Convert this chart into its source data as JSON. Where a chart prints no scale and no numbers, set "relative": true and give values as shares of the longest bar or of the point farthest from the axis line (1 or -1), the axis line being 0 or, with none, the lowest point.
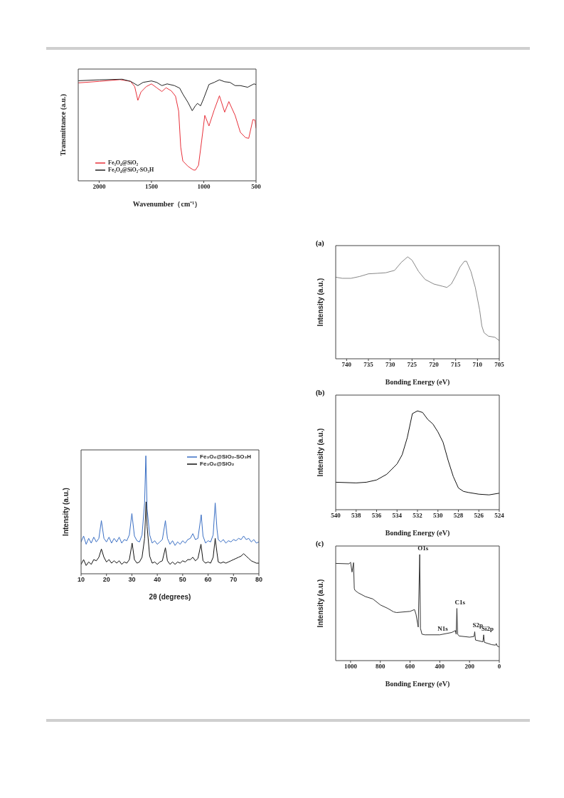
{
  "chart_data": [
    {
      "type": "line",
      "relative": true,
      "xlabel": "Wavenumber（cm⁻¹）",
      "ylabel": "Transmittance (a.u.)",
      "xlim": [
        2200,
        500
      ],
      "xticks": [
        2000,
        1500,
        1000,
        500
      ],
      "legend": "bottom left",
      "series": [
        {
          "name": "Fe₃O₄@SiO₂",
          "color": "#e8303a",
          "x": [
            2200,
            2000,
            1800,
            1700,
            1660,
            1630,
            1600,
            1550,
            1500,
            1450,
            1400,
            1360,
            1310,
            1270,
            1240,
            1220,
            1200,
            1150,
            1100,
            1080,
            1050,
            1020,
            990,
            950,
            900,
            850,
            800,
            760,
            700,
            650,
            600,
            570,
            530,
            510,
            500
          ],
          "values": [
            0.964,
            0.979,
            0.996,
            0.979,
            0.927,
            0.792,
            0.874,
            0.927,
            0.954,
            0.916,
            0.879,
            0.916,
            0.885,
            0.833,
            0.686,
            0.331,
            0.195,
            0.142,
            0.107,
            0.105,
            0.153,
            0.393,
            0.644,
            0.54,
            0.697,
            0.837,
            0.676,
            0.78,
            0.644,
            0.477,
            0.425,
            0.418,
            0.603,
            0.598,
            0.519
          ]
        },
        {
          "name": "Fe₃O₄@SiO₂-SO₃H",
          "color": "#222222",
          "x": [
            2200,
            2000,
            1780,
            1700,
            1630,
            1580,
            1500,
            1450,
            1400,
            1350,
            1280,
            1230,
            1200,
            1150,
            1110,
            1080,
            1060,
            1030,
            1000,
            950,
            900,
            850,
            800,
            750,
            700,
            650,
            580,
            520,
            500
          ],
          "values": [
            0.985,
            0.994,
            1.0,
            0.979,
            0.937,
            0.969,
            0.983,
            0.969,
            0.937,
            0.954,
            0.937,
            0.912,
            0.854,
            0.77,
            0.69,
            0.738,
            0.762,
            0.738,
            0.812,
            0.948,
            0.969,
            0.994,
            0.975,
            0.969,
            0.937,
            0.937,
            0.921,
            0.954,
            0.948
          ]
        }
      ]
    },
    {
      "type": "line",
      "relative": true,
      "xlabel": "2θ (degrees)",
      "ylabel": "Intensity (a.u.)",
      "xlim": [
        10,
        80
      ],
      "xticks": [
        10,
        20,
        30,
        40,
        50,
        60,
        70,
        80
      ],
      "legend": "top right",
      "series": [
        {
          "name": "Fe₃O₄@SiO₂-SO₃H",
          "color": "#3a6fc4",
          "x": [
            10,
            11,
            12,
            13,
            14,
            15,
            16,
            17,
            18,
            19,
            20,
            21,
            22,
            23,
            24,
            25,
            26,
            27,
            28,
            29,
            30,
            31,
            32,
            33,
            34,
            35,
            35.5,
            36,
            37,
            38,
            39,
            40,
            41,
            42,
            43.2,
            44,
            45,
            46,
            47,
            48,
            49,
            50,
            51,
            52,
            53,
            54,
            55,
            56,
            57.3,
            58,
            59,
            60,
            61,
            62,
            62.8,
            63.5,
            64,
            65,
            66,
            67,
            68,
            69,
            70,
            71,
            72,
            73,
            74,
            75,
            76,
            77,
            78,
            79,
            80
          ],
          "values": [
            0.27,
            0.32,
            0.25,
            0.3,
            0.26,
            0.31,
            0.27,
            0.3,
            0.45,
            0.3,
            0.27,
            0.31,
            0.26,
            0.3,
            0.27,
            0.31,
            0.26,
            0.29,
            0.28,
            0.33,
            0.51,
            0.32,
            0.28,
            0.27,
            0.33,
            0.6,
            1.0,
            0.55,
            0.33,
            0.26,
            0.28,
            0.25,
            0.27,
            0.29,
            0.45,
            0.3,
            0.25,
            0.28,
            0.24,
            0.27,
            0.25,
            0.28,
            0.26,
            0.29,
            0.3,
            0.34,
            0.29,
            0.3,
            0.5,
            0.32,
            0.26,
            0.28,
            0.27,
            0.33,
            0.6,
            0.38,
            0.29,
            0.27,
            0.29,
            0.26,
            0.28,
            0.27,
            0.29,
            0.28,
            0.3,
            0.29,
            0.32,
            0.29,
            0.3,
            0.27,
            0.29,
            0.26,
            0.27
          ]
        },
        {
          "name": "Fe₃O₄@SiO₂",
          "color": "#111111",
          "x": [
            10,
            11,
            12,
            13,
            14,
            15,
            16,
            17,
            18,
            19,
            20,
            21,
            22,
            23,
            24,
            25,
            26,
            27,
            28,
            29,
            30.1,
            31,
            32,
            33,
            34,
            35,
            35.6,
            36,
            37,
            38,
            39,
            40,
            41,
            42,
            43.2,
            44,
            45,
            46,
            47,
            48,
            49,
            50,
            51,
            52,
            53,
            54,
            55,
            56,
            57.2,
            58,
            59,
            60,
            61,
            62,
            62.8,
            63.5,
            64,
            65,
            66,
            67,
            68,
            69,
            70,
            71,
            72,
            73,
            74,
            75,
            76,
            77,
            78,
            79,
            80
          ],
          "values": [
            0.08,
            0.12,
            0.07,
            0.1,
            0.08,
            0.12,
            0.11,
            0.14,
            0.21,
            0.14,
            0.1,
            0.12,
            0.09,
            0.11,
            0.09,
            0.11,
            0.08,
            0.1,
            0.09,
            0.12,
            0.26,
            0.12,
            0.09,
            0.1,
            0.14,
            0.3,
            0.61,
            0.4,
            0.15,
            0.09,
            0.1,
            0.08,
            0.1,
            0.11,
            0.22,
            0.11,
            0.08,
            0.1,
            0.08,
            0.1,
            0.09,
            0.11,
            0.1,
            0.12,
            0.12,
            0.14,
            0.11,
            0.13,
            0.25,
            0.11,
            0.09,
            0.1,
            0.09,
            0.14,
            0.3,
            0.18,
            0.1,
            0.09,
            0.1,
            0.09,
            0.1,
            0.11,
            0.12,
            0.13,
            0.14,
            0.15,
            0.17,
            0.15,
            0.13,
            0.11,
            0.1,
            0.09,
            0.09
          ]
        }
      ]
    },
    {
      "type": "line",
      "relative": true,
      "title": "(a)",
      "xlabel": "Bonding Energy (eV)",
      "ylabel": "Intensity (a.u.)",
      "xlim": [
        742.5,
        705
      ],
      "xticks": [
        740,
        735,
        730,
        725,
        720,
        715,
        710,
        705
      ],
      "series": [
        {
          "color": "#888888",
          "x": [
            742.5,
            741,
            739,
            737,
            735,
            733,
            731,
            729,
            727.5,
            726,
            725,
            723.5,
            722,
            720,
            718,
            717,
            716,
            715,
            714,
            713,
            712.5,
            711.5,
            710.5,
            709.5,
            709,
            708.5,
            707.5,
            706,
            705
          ],
          "values": [
            0.8,
            0.789,
            0.789,
            0.807,
            0.833,
            0.838,
            0.844,
            0.867,
            0.944,
            1.0,
            0.967,
            0.856,
            0.778,
            0.733,
            0.711,
            0.7,
            0.733,
            0.811,
            0.9,
            0.956,
            0.956,
            0.856,
            0.7,
            0.478,
            0.322,
            0.256,
            0.222,
            0.211,
            0.178
          ]
        }
      ]
    },
    {
      "type": "line",
      "relative": true,
      "title": "(b)",
      "xlabel": "Bonding Energy (eV)",
      "ylabel": "Intensity (a.u.)",
      "xlim": [
        540,
        524
      ],
      "xticks": [
        540,
        538,
        536,
        534,
        532,
        530,
        528,
        526,
        524
      ],
      "series": [
        {
          "color": "#111111",
          "x": [
            540,
            538,
            537,
            536,
            535,
            534,
            533.5,
            533,
            532.5,
            532,
            531.5,
            531,
            530.5,
            530,
            529.5,
            529,
            528.5,
            528,
            527.5,
            527,
            526,
            525,
            524
          ],
          "values": [
            0.278,
            0.271,
            0.278,
            0.301,
            0.359,
            0.463,
            0.556,
            0.729,
            0.972,
            1.0,
            0.984,
            0.914,
            0.868,
            0.787,
            0.683,
            0.498,
            0.336,
            0.22,
            0.185,
            0.174,
            0.157,
            0.15,
            0.167
          ]
        }
      ]
    },
    {
      "type": "line",
      "relative": true,
      "title": "(c)",
      "xlabel": "Bonding Energy (eV)",
      "ylabel": "Intensity (a.u.)",
      "xlim": [
        1100,
        0
      ],
      "xticks": [
        1000,
        800,
        600,
        400,
        200,
        0
      ],
      "series": [
        {
          "color": "#333333",
          "x": [
            1100,
            1010,
            1000,
            990,
            980,
            975,
            970,
            950,
            900,
            850,
            800,
            750,
            710,
            690,
            600,
            570,
            560,
            545,
            535,
            530,
            520,
            500,
            400,
            320,
            295,
            290,
            285,
            280,
            270,
            200,
            170,
            165,
            160,
            110,
            105,
            100,
            50,
            25,
            20,
            15,
            0
          ],
          "values": [
            0.916,
            0.912,
            0.927,
            0.834,
            0.923,
            0.68,
            0.662,
            0.64,
            0.603,
            0.581,
            0.525,
            0.492,
            0.459,
            0.453,
            0.464,
            0.481,
            0.437,
            0.316,
            1.0,
            0.305,
            0.249,
            0.243,
            0.243,
            0.265,
            0.283,
            0.249,
            0.492,
            0.249,
            0.232,
            0.221,
            0.227,
            0.272,
            0.194,
            0.177,
            0.243,
            0.172,
            0.15,
            0.146,
            0.161,
            0.139,
            0.128
          ]
        }
      ],
      "annotations": [
        {
          "text": "O1s",
          "x": 535,
          "y": 1.0
        },
        {
          "text": "N1s",
          "x": 400,
          "y": 0.243
        },
        {
          "text": "C1s",
          "x": 285,
          "y": 0.492
        },
        {
          "text": "S2p",
          "x": 165,
          "y": 0.272
        },
        {
          "text": "Si2p",
          "x": 105,
          "y": 0.243
        }
      ]
    }
  ]
}
